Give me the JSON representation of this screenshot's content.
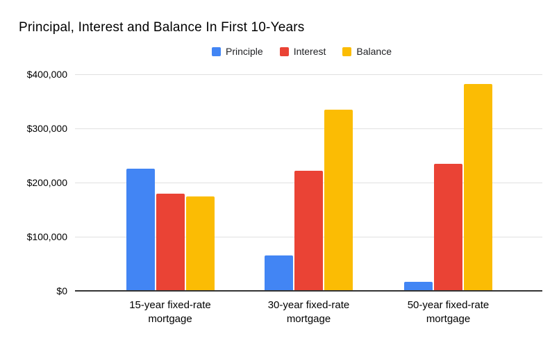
{
  "chart_data": {
    "type": "bar",
    "title": "Principal, Interest and Balance In First 10-Years",
    "categories": [
      "15-year fixed-rate mortgage",
      "30-year fixed-rate mortgage",
      "50-year fixed-rate mortgage"
    ],
    "series": [
      {
        "name": "Principle",
        "color": "#4285F4",
        "values": [
          225000,
          65000,
          17000
        ]
      },
      {
        "name": "Interest",
        "color": "#EA4335",
        "values": [
          179000,
          222000,
          235000
        ]
      },
      {
        "name": "Balance",
        "color": "#FBBC04",
        "values": [
          174000,
          335000,
          382000
        ]
      }
    ],
    "xlabel": "",
    "ylabel": "",
    "ylim": [
      0,
      400000
    ],
    "ytick_step": 100000,
    "ytick_labels": [
      "$0",
      "$100,000",
      "$200,000",
      "$300,000",
      "$400,000"
    ],
    "grid": true,
    "legend_position": "top",
    "grid_color": "#e0e0e0",
    "axis_color": "#333333",
    "background_color": "#ffffff",
    "title_color": "#000000",
    "label_color": "#000000"
  }
}
